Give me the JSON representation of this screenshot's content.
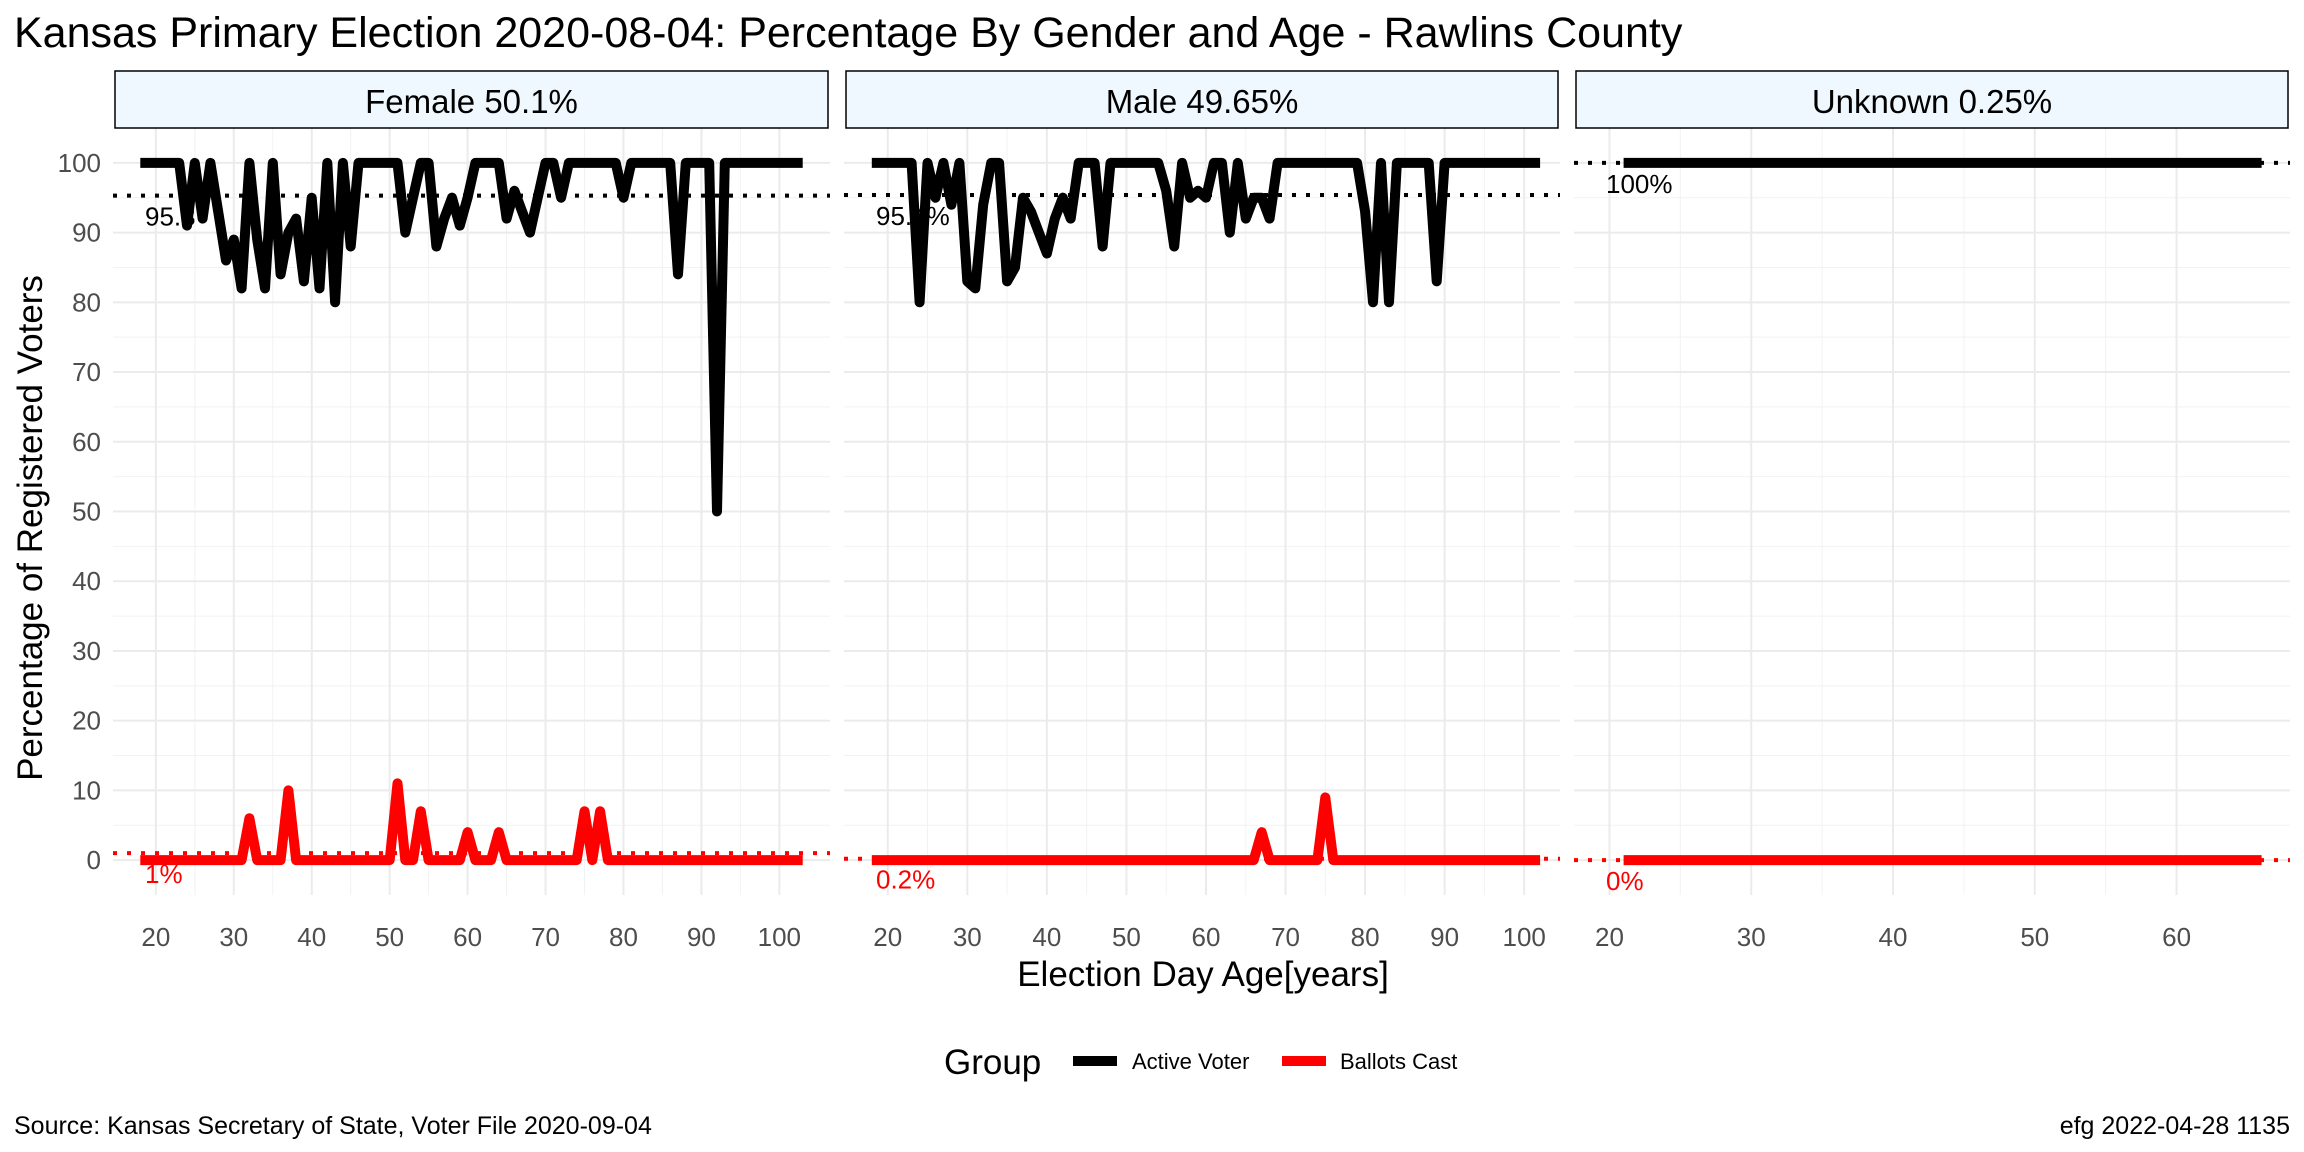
{
  "chart_data": {
    "type": "line",
    "title": "Kansas Primary Election 2020-08-04:  Percentage By Gender and Age - Rawlins County",
    "xlabel": "Election Day Age[years]",
    "ylabel": "Percentage of Registered Voters",
    "ylim": [
      -5,
      105
    ],
    "yticks": [
      0,
      10,
      20,
      30,
      40,
      50,
      60,
      70,
      80,
      90,
      100
    ],
    "grid": true,
    "legend": {
      "title": "Group",
      "position": "bottom",
      "entries": [
        {
          "label": "Active Voter",
          "color": "#000000"
        },
        {
          "label": "Ballots Cast",
          "color": "#ff0000"
        }
      ]
    },
    "caption_left": "Source:  Kansas Secretary of State, Voter File  2020-09-04",
    "caption_right": "efg 2022-04-28 1135",
    "panels": [
      {
        "label": "Female 50.1%",
        "xlim": [
          14.5,
          106.5
        ],
        "xticks": [
          20,
          30,
          40,
          50,
          60,
          70,
          80,
          90,
          100
        ],
        "ref_active": 95.3,
        "ref_active_label": "95.3",
        "ref_ballots": 1,
        "ref_ballots_label": "1%",
        "series": [
          {
            "name": "Active Voter",
            "color": "#000000",
            "x": [
              18,
              19,
              20,
              21,
              22,
              23,
              24,
              25,
              26,
              27,
              28,
              29,
              30,
              31,
              32,
              33,
              34,
              35,
              36,
              37,
              38,
              39,
              40,
              41,
              42,
              43,
              44,
              45,
              46,
              47,
              48,
              49,
              50,
              51,
              52,
              53,
              54,
              55,
              56,
              57,
              58,
              59,
              60,
              61,
              62,
              63,
              64,
              65,
              66,
              67,
              68,
              69,
              70,
              71,
              72,
              73,
              74,
              75,
              76,
              77,
              78,
              79,
              80,
              81,
              82,
              83,
              84,
              85,
              86,
              87,
              88,
              89,
              90,
              91,
              92,
              93,
              94,
              95,
              96,
              97,
              98,
              99,
              100,
              101,
              102,
              103
            ],
            "y": [
              100,
              100,
              100,
              100,
              100,
              100,
              91,
              100,
              92,
              100,
              93,
              86,
              89,
              82,
              100,
              89,
              82,
              100,
              84,
              90,
              92,
              83,
              95,
              82,
              100,
              80,
              100,
              88,
              100,
              100,
              100,
              100,
              100,
              100,
              90,
              95,
              100,
              100,
              88,
              92,
              95,
              91,
              95,
              100,
              100,
              100,
              100,
              92,
              96,
              93,
              90,
              95,
              100,
              100,
              95,
              100,
              100,
              100,
              100,
              100,
              100,
              100,
              95,
              100,
              100,
              100,
              100,
              100,
              100,
              84,
              100,
              100,
              100,
              100,
              50,
              100,
              100,
              100,
              100,
              100,
              100,
              100,
              100,
              100,
              100,
              100
            ]
          },
          {
            "name": "Ballots Cast",
            "color": "#ff0000",
            "x": [
              18,
              19,
              20,
              21,
              22,
              23,
              24,
              25,
              26,
              27,
              28,
              29,
              30,
              31,
              32,
              33,
              34,
              35,
              36,
              37,
              38,
              39,
              40,
              41,
              42,
              43,
              44,
              45,
              46,
              47,
              48,
              49,
              50,
              51,
              52,
              53,
              54,
              55,
              56,
              57,
              58,
              59,
              60,
              61,
              62,
              63,
              64,
              65,
              66,
              67,
              68,
              69,
              70,
              71,
              72,
              73,
              74,
              75,
              76,
              77,
              78,
              79,
              80,
              81,
              82,
              83,
              84,
              85,
              86,
              87,
              88,
              89,
              90,
              91,
              92,
              93,
              94,
              95,
              96,
              97,
              98,
              99,
              100,
              101,
              102,
              103
            ],
            "y": [
              0,
              0,
              0,
              0,
              0,
              0,
              0,
              0,
              0,
              0,
              0,
              0,
              0,
              0,
              6,
              0,
              0,
              0,
              0,
              10,
              0,
              0,
              0,
              0,
              0,
              0,
              0,
              0,
              0,
              0,
              0,
              0,
              0,
              11,
              0,
              0,
              7,
              0,
              0,
              0,
              0,
              0,
              4,
              0,
              0,
              0,
              4,
              0,
              0,
              0,
              0,
              0,
              0,
              0,
              0,
              0,
              0,
              7,
              0,
              7,
              0,
              0,
              0,
              0,
              0,
              0,
              0,
              0,
              0,
              0,
              0,
              0,
              0,
              0,
              0,
              0,
              0,
              0,
              0,
              0,
              0,
              0,
              0,
              0,
              0,
              0
            ]
          }
        ]
      },
      {
        "label": "Male 49.65%",
        "xlim": [
          14.5,
          104.5
        ],
        "xticks": [
          20,
          30,
          40,
          50,
          60,
          70,
          80,
          90,
          100
        ],
        "ref_active": 95.4,
        "ref_active_label": "95.4%",
        "ref_ballots": 0.2,
        "ref_ballots_label": "0.2%",
        "series": [
          {
            "name": "Active Voter",
            "color": "#000000",
            "x": [
              18,
              19,
              20,
              21,
              22,
              23,
              24,
              25,
              26,
              27,
              28,
              29,
              30,
              31,
              32,
              33,
              34,
              35,
              36,
              37,
              38,
              39,
              40,
              41,
              42,
              43,
              44,
              45,
              46,
              47,
              48,
              49,
              50,
              51,
              52,
              53,
              54,
              55,
              56,
              57,
              58,
              59,
              60,
              61,
              62,
              63,
              64,
              65,
              66,
              67,
              68,
              69,
              70,
              71,
              72,
              73,
              74,
              75,
              76,
              77,
              78,
              79,
              80,
              81,
              82,
              83,
              84,
              85,
              86,
              87,
              88,
              89,
              90,
              91,
              92,
              93,
              94,
              95,
              96,
              97,
              98,
              99,
              100,
              101,
              102
            ],
            "y": [
              100,
              100,
              100,
              100,
              100,
              100,
              80,
              100,
              95,
              100,
              94,
              100,
              83,
              82,
              94,
              100,
              100,
              83,
              85,
              95,
              93,
              90,
              87,
              92,
              95,
              92,
              100,
              100,
              100,
              88,
              100,
              100,
              100,
              100,
              100,
              100,
              100,
              96,
              88,
              100,
              95,
              96,
              95,
              100,
              100,
              90,
              100,
              92,
              95,
              95,
              92,
              100,
              100,
              100,
              100,
              100,
              100,
              100,
              100,
              100,
              100,
              100,
              93,
              80,
              100,
              80,
              100,
              100,
              100,
              100,
              100,
              83,
              100,
              100,
              100,
              100,
              100,
              100,
              100,
              100,
              100,
              100,
              100,
              100,
              100
            ]
          },
          {
            "name": "Ballots Cast",
            "color": "#ff0000",
            "x": [
              18,
              19,
              20,
              21,
              22,
              23,
              24,
              25,
              26,
              27,
              28,
              29,
              30,
              31,
              32,
              33,
              34,
              35,
              36,
              37,
              38,
              39,
              40,
              41,
              42,
              43,
              44,
              45,
              46,
              47,
              48,
              49,
              50,
              51,
              52,
              53,
              54,
              55,
              56,
              57,
              58,
              59,
              60,
              61,
              62,
              63,
              64,
              65,
              66,
              67,
              68,
              69,
              70,
              71,
              72,
              73,
              74,
              75,
              76,
              77,
              78,
              79,
              80,
              81,
              82,
              83,
              84,
              85,
              86,
              87,
              88,
              89,
              90,
              91,
              92,
              93,
              94,
              95,
              96,
              97,
              98,
              99,
              100,
              101,
              102
            ],
            "y": [
              0,
              0,
              0,
              0,
              0,
              0,
              0,
              0,
              0,
              0,
              0,
              0,
              0,
              0,
              0,
              0,
              0,
              0,
              0,
              0,
              0,
              0,
              0,
              0,
              0,
              0,
              0,
              0,
              0,
              0,
              0,
              0,
              0,
              0,
              0,
              0,
              0,
              0,
              0,
              0,
              0,
              0,
              0,
              0,
              0,
              0,
              0,
              0,
              0,
              4,
              0,
              0,
              0,
              0,
              0,
              0,
              0,
              9,
              0,
              0,
              0,
              0,
              0,
              0,
              0,
              0,
              0,
              0,
              0,
              0,
              0,
              0,
              0,
              0,
              0,
              0,
              0,
              0,
              0,
              0,
              0,
              0,
              0,
              0,
              0
            ]
          }
        ]
      },
      {
        "label": "Unknown 0.25%",
        "xlim": [
          17.5,
          68.0
        ],
        "xticks": [
          20,
          30,
          40,
          50,
          60
        ],
        "ref_active": 100,
        "ref_active_label": "100%",
        "ref_ballots": 0,
        "ref_ballots_label": "0%",
        "series": [
          {
            "name": "Active Voter",
            "color": "#000000",
            "x": [
              21,
              66
            ],
            "y": [
              100,
              100
            ]
          },
          {
            "name": "Ballots Cast",
            "color": "#ff0000",
            "x": [
              21,
              66
            ],
            "y": [
              0,
              0
            ]
          }
        ]
      }
    ]
  }
}
